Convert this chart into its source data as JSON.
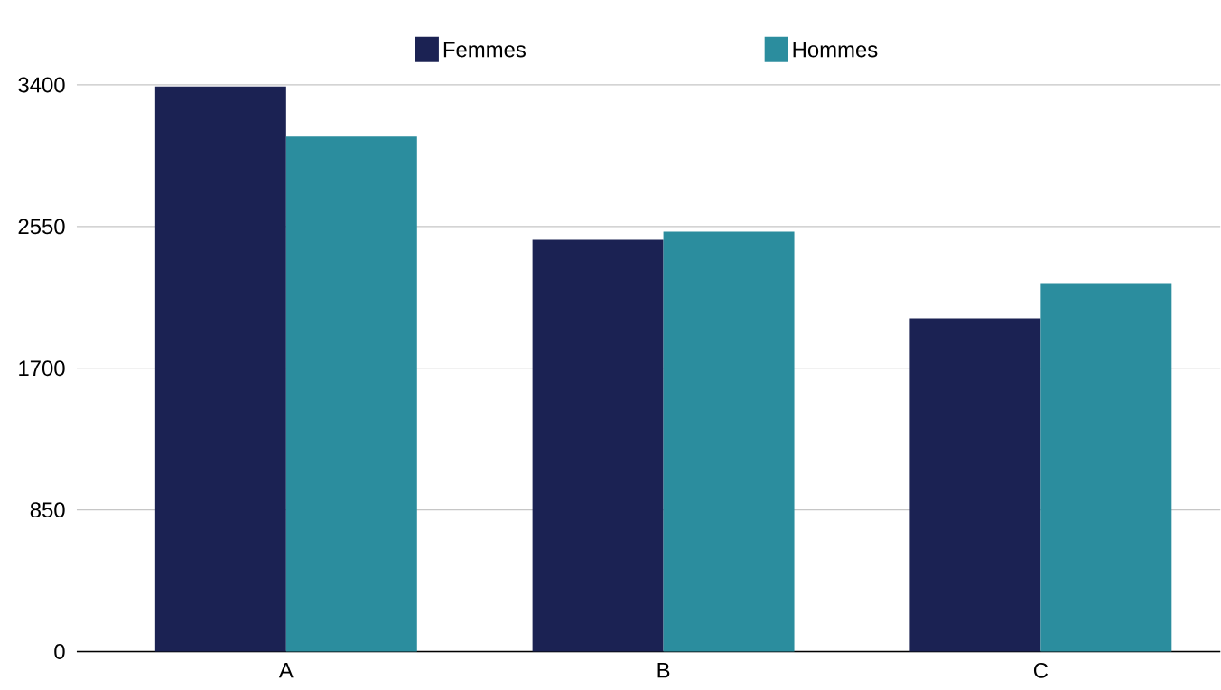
{
  "chart_data": {
    "type": "bar",
    "categories": [
      "A",
      "B",
      "C"
    ],
    "series": [
      {
        "name": "Femmes",
        "color": "#1b2253",
        "values": [
          3390,
          2470,
          2000
        ]
      },
      {
        "name": "Hommes",
        "color": "#2b8d9e",
        "values": [
          3090,
          2520,
          2210
        ]
      }
    ],
    "ylim": [
      0,
      3400
    ],
    "yticks": [
      0,
      850,
      1700,
      2550,
      3400
    ],
    "grid": "y",
    "legend": "top"
  }
}
